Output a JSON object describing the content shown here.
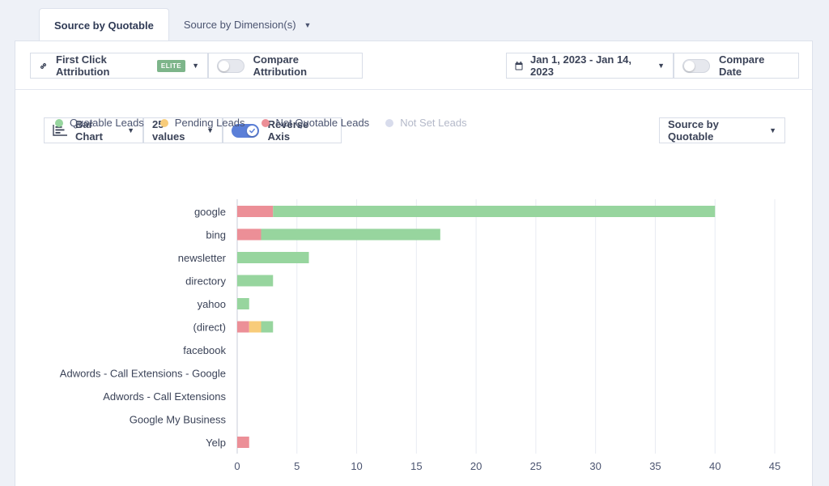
{
  "tabs": [
    {
      "label": "Source by Quotable",
      "active": true
    },
    {
      "label": "Source by Dimension(s)",
      "active": false
    }
  ],
  "topbar": {
    "attribution_label": "First Click Attribution",
    "attribution_badge": "ELITE",
    "compare_attribution_label": "Compare Attribution",
    "date_range_label": "Jan 1, 2023 - Jan 14, 2023",
    "compare_date_label": "Compare Date"
  },
  "chart_controls": {
    "chart_type_label": "Bar Chart",
    "values_count_label": "25 values",
    "reverse_axis_label": "Reverse Axis",
    "reverse_axis_on": true,
    "group_by_label": "Source by Quotable"
  },
  "colors": {
    "quotable": "#97d59e",
    "pending": "#f8cc7a",
    "not_quotable": "#ec8f97",
    "not_set": "#d8dcec"
  },
  "chart_data": {
    "type": "bar",
    "orientation": "horizontal",
    "stacked": true,
    "categories": [
      "google",
      "bing",
      "newsletter",
      "directory",
      "yahoo",
      "(direct)",
      "facebook",
      "Adwords - Call Extensions - Google",
      "Adwords - Call Extensions",
      "Google My Business",
      "Yelp"
    ],
    "series": [
      {
        "name": "Not Quotable Leads",
        "color_key": "not_quotable",
        "values": [
          3,
          2,
          0,
          0,
          0,
          1,
          0,
          0,
          0,
          0,
          1
        ]
      },
      {
        "name": "Pending Leads",
        "color_key": "pending",
        "values": [
          0,
          0,
          0,
          0,
          0,
          1,
          0,
          0,
          0,
          0,
          0
        ]
      },
      {
        "name": "Quotable Leads",
        "color_key": "quotable",
        "values": [
          37,
          15,
          6,
          3,
          1,
          1,
          0,
          0,
          0,
          0,
          0
        ]
      }
    ],
    "legend": [
      {
        "name": "Quotable Leads",
        "color_key": "quotable",
        "muted": false
      },
      {
        "name": "Pending Leads",
        "color_key": "pending",
        "muted": false
      },
      {
        "name": "Not Quotable Leads",
        "color_key": "not_quotable",
        "muted": false
      },
      {
        "name": "Not Set Leads",
        "color_key": "not_set",
        "muted": true
      }
    ],
    "xlim": [
      0,
      45
    ],
    "xticks": [
      0,
      5,
      10,
      15,
      20,
      25,
      30,
      35,
      40,
      45
    ],
    "grid": true,
    "legend_position": "top-left"
  }
}
